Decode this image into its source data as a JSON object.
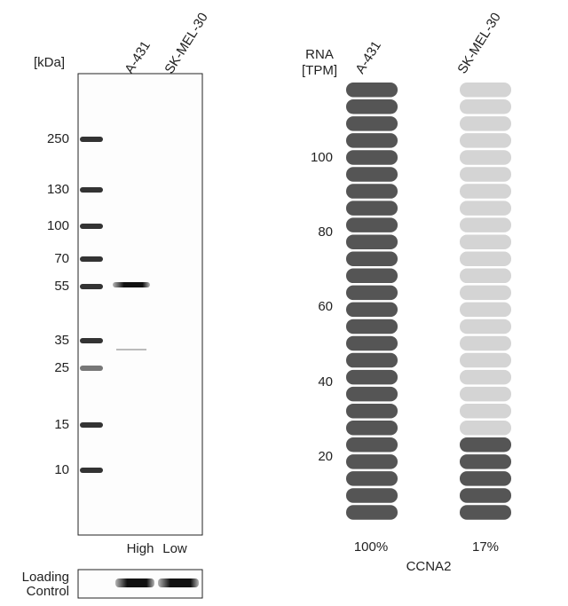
{
  "western_blot": {
    "unit_label": "[kDa]",
    "columns": [
      "A-431",
      "SK-MEL-30"
    ],
    "ladder": [
      "250",
      "130",
      "100",
      "70",
      "55",
      "35",
      "25",
      "15",
      "10"
    ],
    "levels": [
      "High",
      "Low"
    ],
    "loading_control": [
      "Loading",
      "Control"
    ]
  },
  "rna": {
    "axis_label": [
      "RNA",
      "[TPM]"
    ],
    "columns": [
      "A-431",
      "SK-MEL-30"
    ],
    "yticks": [
      "100",
      "80",
      "60",
      "40",
      "20"
    ],
    "percentages": [
      "100%",
      "17%"
    ],
    "gene": "CCNA2"
  }
}
